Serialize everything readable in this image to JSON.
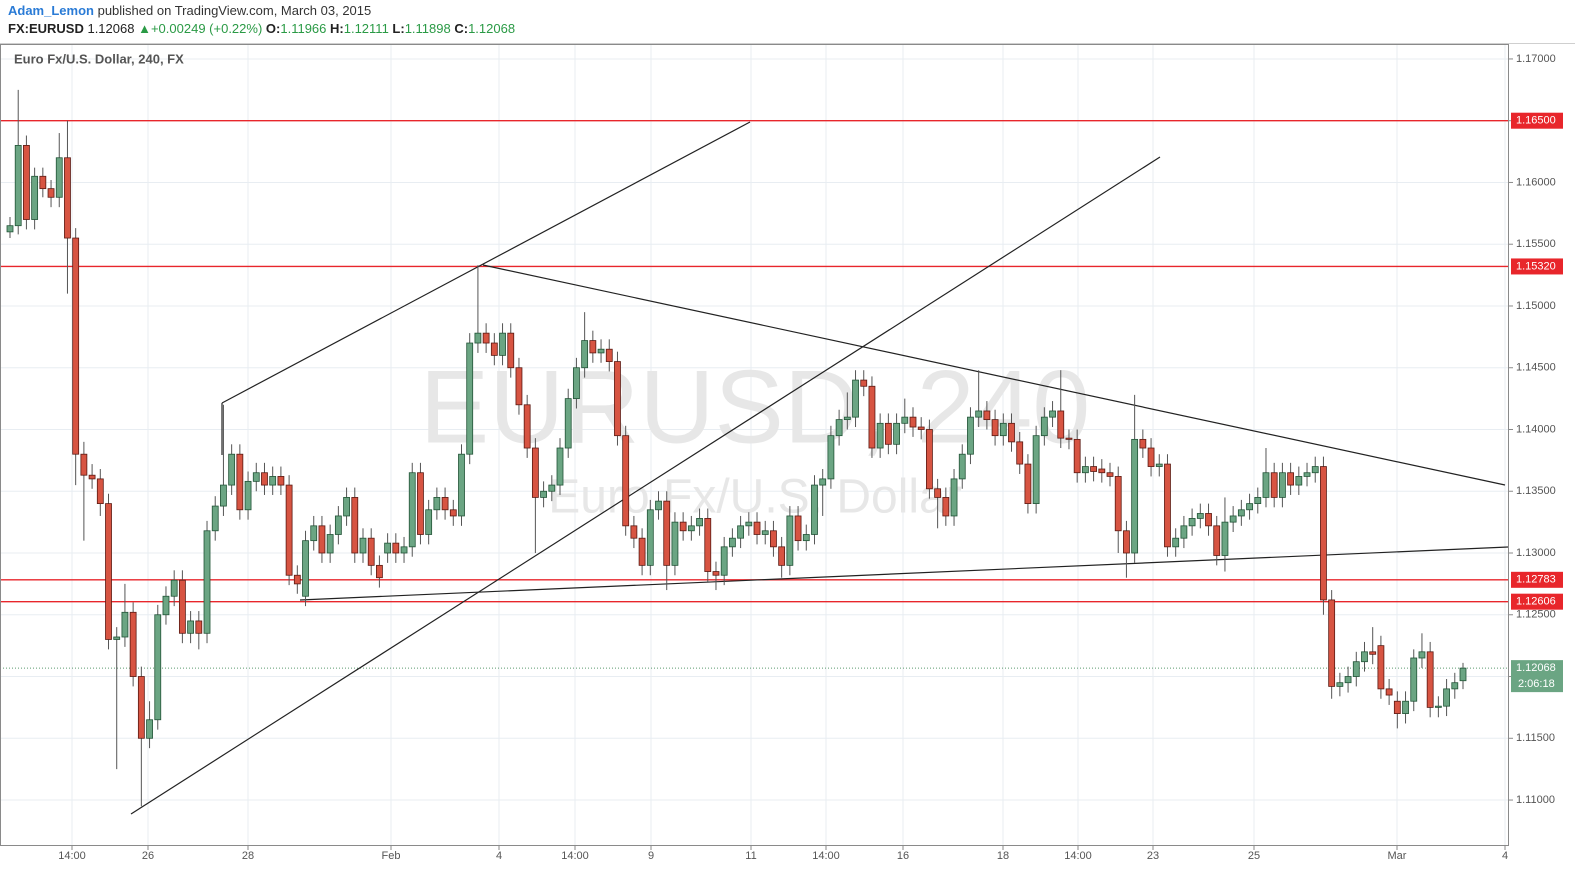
{
  "header": {
    "author": "Adam_Lemon",
    "published": "published on TradingView.com, March 03, 2015",
    "symbol": "FX:EURUSD",
    "last": "1.12068",
    "arrow": "▲",
    "change": "+0.00249 (+0.22%)",
    "o_label": "O:",
    "open": "1.11966",
    "h_label": "H:",
    "high": "1.12111",
    "l_label": "L:",
    "low": "1.11898",
    "c_label": "C:",
    "close": "1.12068"
  },
  "chart_data": {
    "type": "candlestick",
    "title": "Euro Fx/U.S. Dollar, 240, FX",
    "watermark": "EURUSD, 240",
    "watermark_sub": "Euro Fx/U.S. Dollar",
    "up_color": "#6ba583",
    "down_color": "#d75442",
    "grid": true,
    "ylim": [
      1.10636,
      1.17121
    ],
    "yticks": [
      {
        "value": 1.11,
        "label": "1.11000"
      },
      {
        "value": 1.115,
        "label": "1.11500"
      },
      {
        "value": 1.12,
        "label": "1.12000"
      },
      {
        "value": 1.125,
        "label": "1.12500"
      },
      {
        "value": 1.13,
        "label": "1.13000"
      },
      {
        "value": 1.135,
        "label": "1.13500"
      },
      {
        "value": 1.14,
        "label": "1.14000"
      },
      {
        "value": 1.145,
        "label": "1.14500"
      },
      {
        "value": 1.15,
        "label": "1.15000"
      },
      {
        "value": 1.155,
        "label": "1.15500"
      },
      {
        "value": 1.16,
        "label": "1.16000"
      },
      {
        "value": 1.165,
        "label": "1.16500"
      },
      {
        "value": 1.17,
        "label": "1.17000"
      }
    ],
    "x_labels": [
      "14:00",
      "26",
      "28",
      "Feb",
      "4",
      "14:00",
      "9",
      "11",
      "14:00",
      "16",
      "18",
      "14:00",
      "23",
      "25",
      "Mar",
      "4"
    ],
    "levels": [
      {
        "value": 1.165,
        "label": "1.16500"
      },
      {
        "value": 1.1532,
        "label": "1.15320"
      },
      {
        "value": 1.12783,
        "label": "1.12783"
      },
      {
        "value": 1.12606,
        "label": "1.12606"
      }
    ],
    "level_color": "#e8262b",
    "last_price": {
      "value": 1.12068,
      "label": "1.12068"
    },
    "countdown": "2:06:18",
    "ohlc": [
      [
        1.156,
        1.1572,
        1.1555,
        1.1565
      ],
      [
        1.1565,
        1.1675,
        1.1558,
        1.163
      ],
      [
        1.163,
        1.1638,
        1.1562,
        1.157
      ],
      [
        1.157,
        1.1612,
        1.1562,
        1.1605
      ],
      [
        1.1605,
        1.1612,
        1.1588,
        1.1595
      ],
      [
        1.1595,
        1.1602,
        1.158,
        1.1588
      ],
      [
        1.1588,
        1.164,
        1.158,
        1.162
      ],
      [
        1.162,
        1.165,
        1.151,
        1.1555
      ],
      [
        1.1555,
        1.1563,
        1.1355,
        1.138
      ],
      [
        1.138,
        1.139,
        1.131,
        1.1363
      ],
      [
        1.1363,
        1.1372,
        1.1352,
        1.136
      ],
      [
        1.136,
        1.1368,
        1.133,
        1.134
      ],
      [
        1.134,
        1.1348,
        1.1222,
        1.123
      ],
      [
        1.123,
        1.124,
        1.1125,
        1.1232
      ],
      [
        1.1232,
        1.1275,
        1.1224,
        1.1252
      ],
      [
        1.1252,
        1.126,
        1.1192,
        1.12
      ],
      [
        1.12,
        1.1208,
        1.1095,
        1.115
      ],
      [
        1.115,
        1.118,
        1.1142,
        1.1165
      ],
      [
        1.1165,
        1.1258,
        1.1157,
        1.125
      ],
      [
        1.125,
        1.1273,
        1.1242,
        1.1265
      ],
      [
        1.1265,
        1.1286,
        1.1257,
        1.1278
      ],
      [
        1.1278,
        1.1286,
        1.1227,
        1.1235
      ],
      [
        1.1235,
        1.1253,
        1.1227,
        1.1245
      ],
      [
        1.1245,
        1.1253,
        1.1222,
        1.1235
      ],
      [
        1.1235,
        1.1326,
        1.1227,
        1.1318
      ],
      [
        1.1318,
        1.1346,
        1.131,
        1.1338
      ],
      [
        1.1338,
        1.142,
        1.133,
        1.1355
      ],
      [
        1.1355,
        1.1388,
        1.1347,
        1.138
      ],
      [
        1.138,
        1.1388,
        1.1327,
        1.1335
      ],
      [
        1.1335,
        1.1366,
        1.1327,
        1.1358
      ],
      [
        1.1358,
        1.1373,
        1.135,
        1.1365
      ],
      [
        1.1365,
        1.1373,
        1.1347,
        1.1355
      ],
      [
        1.1355,
        1.137,
        1.1347,
        1.1362
      ],
      [
        1.1362,
        1.137,
        1.1347,
        1.1355
      ],
      [
        1.1355,
        1.1363,
        1.1274,
        1.1282
      ],
      [
        1.1282,
        1.129,
        1.1267,
        1.1275
      ],
      [
        1.1265,
        1.1318,
        1.1257,
        1.131
      ],
      [
        1.131,
        1.133,
        1.1302,
        1.1322
      ],
      [
        1.1322,
        1.133,
        1.1292,
        1.13
      ],
      [
        1.13,
        1.1323,
        1.1292,
        1.1315
      ],
      [
        1.1315,
        1.1338,
        1.1307,
        1.133
      ],
      [
        1.133,
        1.1353,
        1.1322,
        1.1345
      ],
      [
        1.1345,
        1.1353,
        1.1292,
        1.13
      ],
      [
        1.13,
        1.132,
        1.1292,
        1.1312
      ],
      [
        1.1312,
        1.132,
        1.1282,
        1.129
      ],
      [
        1.129,
        1.1298,
        1.1272,
        1.128
      ],
      [
        1.13,
        1.1316,
        1.1292,
        1.1308
      ],
      [
        1.1308,
        1.1316,
        1.1292,
        1.13
      ],
      [
        1.13,
        1.1313,
        1.1292,
        1.1305
      ],
      [
        1.1305,
        1.1373,
        1.1297,
        1.1365
      ],
      [
        1.1365,
        1.1373,
        1.1307,
        1.1315
      ],
      [
        1.1315,
        1.1343,
        1.1307,
        1.1335
      ],
      [
        1.1335,
        1.1353,
        1.1327,
        1.1345
      ],
      [
        1.1345,
        1.1353,
        1.1327,
        1.1335
      ],
      [
        1.1335,
        1.1343,
        1.1322,
        1.133
      ],
      [
        1.133,
        1.1388,
        1.1322,
        1.138
      ],
      [
        1.138,
        1.1478,
        1.1372,
        1.147
      ],
      [
        1.147,
        1.1533,
        1.1462,
        1.1478
      ],
      [
        1.1478,
        1.1486,
        1.1462,
        1.147
      ],
      [
        1.147,
        1.1478,
        1.1452,
        1.146
      ],
      [
        1.146,
        1.1486,
        1.1452,
        1.1478
      ],
      [
        1.1478,
        1.1486,
        1.1442,
        1.145
      ],
      [
        1.145,
        1.1458,
        1.1412,
        1.142
      ],
      [
        1.142,
        1.1428,
        1.1377,
        1.1385
      ],
      [
        1.1385,
        1.1393,
        1.13,
        1.1345
      ],
      [
        1.1345,
        1.1358,
        1.1337,
        1.135
      ],
      [
        1.135,
        1.1363,
        1.1342,
        1.1355
      ],
      [
        1.1355,
        1.1393,
        1.1347,
        1.1385
      ],
      [
        1.1385,
        1.1433,
        1.1377,
        1.1425
      ],
      [
        1.1425,
        1.1458,
        1.1417,
        1.145
      ],
      [
        1.145,
        1.1495,
        1.1442,
        1.1472
      ],
      [
        1.1472,
        1.148,
        1.1454,
        1.1462
      ],
      [
        1.1462,
        1.1473,
        1.1454,
        1.1465
      ],
      [
        1.1465,
        1.1473,
        1.1447,
        1.1455
      ],
      [
        1.1455,
        1.1463,
        1.1387,
        1.1395
      ],
      [
        1.1395,
        1.1403,
        1.1314,
        1.1322
      ],
      [
        1.1322,
        1.133,
        1.1304,
        1.1312
      ],
      [
        1.1312,
        1.132,
        1.1282,
        1.129
      ],
      [
        1.129,
        1.1343,
        1.1282,
        1.1335
      ],
      [
        1.1335,
        1.135,
        1.1327,
        1.1342
      ],
      [
        1.1342,
        1.135,
        1.127,
        1.129
      ],
      [
        1.129,
        1.1333,
        1.1282,
        1.1325
      ],
      [
        1.1325,
        1.1333,
        1.131,
        1.1318
      ],
      [
        1.1318,
        1.133,
        1.131,
        1.1322
      ],
      [
        1.1322,
        1.1336,
        1.1314,
        1.1328
      ],
      [
        1.1328,
        1.1336,
        1.1277,
        1.1285
      ],
      [
        1.1285,
        1.1293,
        1.127,
        1.1282
      ],
      [
        1.1282,
        1.1313,
        1.1274,
        1.1305
      ],
      [
        1.1305,
        1.132,
        1.1297,
        1.1312
      ],
      [
        1.1312,
        1.133,
        1.1304,
        1.1322
      ],
      [
        1.1322,
        1.1333,
        1.1314,
        1.1325
      ],
      [
        1.1325,
        1.1333,
        1.1307,
        1.1315
      ],
      [
        1.1315,
        1.1326,
        1.1307,
        1.1318
      ],
      [
        1.1318,
        1.1326,
        1.1297,
        1.1305
      ],
      [
        1.1305,
        1.1313,
        1.128,
        1.129
      ],
      [
        1.129,
        1.1338,
        1.1282,
        1.133
      ],
      [
        1.133,
        1.1338,
        1.1302,
        1.131
      ],
      [
        1.131,
        1.1323,
        1.1302,
        1.1315
      ],
      [
        1.1315,
        1.1363,
        1.1307,
        1.1355
      ],
      [
        1.1355,
        1.1368,
        1.133,
        1.136
      ],
      [
        1.136,
        1.1403,
        1.1352,
        1.1395
      ],
      [
        1.1395,
        1.1416,
        1.1387,
        1.1408
      ],
      [
        1.1408,
        1.143,
        1.14,
        1.141
      ],
      [
        1.141,
        1.1448,
        1.1402,
        1.144
      ],
      [
        1.144,
        1.1448,
        1.1427,
        1.1435
      ],
      [
        1.1435,
        1.1443,
        1.1377,
        1.1385
      ],
      [
        1.1385,
        1.1413,
        1.1377,
        1.1405
      ],
      [
        1.1405,
        1.1413,
        1.138,
        1.1388
      ],
      [
        1.1388,
        1.1413,
        1.138,
        1.1405
      ],
      [
        1.1405,
        1.1425,
        1.1397,
        1.141
      ],
      [
        1.141,
        1.1418,
        1.1394,
        1.1402
      ],
      [
        1.1402,
        1.141,
        1.1392,
        1.14
      ],
      [
        1.14,
        1.1408,
        1.1344,
        1.1352
      ],
      [
        1.1352,
        1.136,
        1.132,
        1.1345
      ],
      [
        1.1345,
        1.1353,
        1.1322,
        1.133
      ],
      [
        1.133,
        1.1368,
        1.1322,
        1.136
      ],
      [
        1.136,
        1.1388,
        1.1352,
        1.138
      ],
      [
        1.138,
        1.1418,
        1.1372,
        1.141
      ],
      [
        1.141,
        1.1448,
        1.1402,
        1.1415
      ],
      [
        1.1415,
        1.1423,
        1.14,
        1.1408
      ],
      [
        1.1408,
        1.1416,
        1.1387,
        1.1395
      ],
      [
        1.1395,
        1.1413,
        1.1387,
        1.1405
      ],
      [
        1.1405,
        1.1413,
        1.1382,
        1.139
      ],
      [
        1.139,
        1.1398,
        1.1364,
        1.1372
      ],
      [
        1.1372,
        1.138,
        1.1332,
        1.134
      ],
      [
        1.134,
        1.1403,
        1.1332,
        1.1395
      ],
      [
        1.1395,
        1.1418,
        1.1387,
        1.141
      ],
      [
        1.141,
        1.1423,
        1.1402,
        1.1415
      ],
      [
        1.1415,
        1.1448,
        1.1385,
        1.1393
      ],
      [
        1.1393,
        1.14,
        1.1384,
        1.1392
      ],
      [
        1.1392,
        1.14,
        1.1357,
        1.1365
      ],
      [
        1.1365,
        1.1378,
        1.1357,
        1.137
      ],
      [
        1.137,
        1.1378,
        1.1358,
        1.1366
      ],
      [
        1.1368,
        1.1376,
        1.1357,
        1.1365
      ],
      [
        1.1365,
        1.1373,
        1.1354,
        1.1362
      ],
      [
        1.1362,
        1.137,
        1.13,
        1.1318
      ],
      [
        1.1318,
        1.1326,
        1.128,
        1.13
      ],
      [
        1.13,
        1.1428,
        1.1292,
        1.1392
      ],
      [
        1.1392,
        1.14,
        1.1377,
        1.1385
      ],
      [
        1.1385,
        1.1393,
        1.1362,
        1.137
      ],
      [
        1.137,
        1.138,
        1.1362,
        1.1372
      ],
      [
        1.1372,
        1.138,
        1.1297,
        1.1305
      ],
      [
        1.1305,
        1.132,
        1.1297,
        1.1312
      ],
      [
        1.1312,
        1.133,
        1.1304,
        1.1322
      ],
      [
        1.1322,
        1.1336,
        1.1314,
        1.1328
      ],
      [
        1.1328,
        1.134,
        1.132,
        1.1332
      ],
      [
        1.1332,
        1.134,
        1.1314,
        1.1322
      ],
      [
        1.1322,
        1.133,
        1.129,
        1.1298
      ],
      [
        1.1298,
        1.1345,
        1.1285,
        1.1325
      ],
      [
        1.1325,
        1.1338,
        1.1317,
        1.133
      ],
      [
        1.133,
        1.1343,
        1.1322,
        1.1335
      ],
      [
        1.1335,
        1.1348,
        1.1327,
        1.134
      ],
      [
        1.134,
        1.1353,
        1.1332,
        1.1345
      ],
      [
        1.1345,
        1.1385,
        1.1337,
        1.1365
      ],
      [
        1.1365,
        1.1373,
        1.1337,
        1.1345
      ],
      [
        1.1345,
        1.1373,
        1.1337,
        1.1365
      ],
      [
        1.1365,
        1.1373,
        1.1347,
        1.1355
      ],
      [
        1.1355,
        1.137,
        1.1347,
        1.1362
      ],
      [
        1.1362,
        1.1373,
        1.1354,
        1.1365
      ],
      [
        1.1365,
        1.1378,
        1.1357,
        1.137
      ],
      [
        1.137,
        1.1378,
        1.125,
        1.1262
      ],
      [
        1.1262,
        1.127,
        1.1182,
        1.1192
      ],
      [
        1.1192,
        1.1203,
        1.1184,
        1.1195
      ],
      [
        1.1195,
        1.1208,
        1.1187,
        1.12
      ],
      [
        1.12,
        1.122,
        1.1192,
        1.1212
      ],
      [
        1.1212,
        1.1228,
        1.1204,
        1.122
      ],
      [
        1.122,
        1.124,
        1.121,
        1.1218
      ],
      [
        1.1225,
        1.1233,
        1.1182,
        1.119
      ],
      [
        1.119,
        1.1198,
        1.1177,
        1.1185
      ],
      [
        1.118,
        1.1188,
        1.1158,
        1.117
      ],
      [
        1.117,
        1.1188,
        1.1162,
        1.118
      ],
      [
        1.118,
        1.1222,
        1.1172,
        1.1215
      ],
      [
        1.1215,
        1.1235,
        1.1207,
        1.122
      ],
      [
        1.122,
        1.1228,
        1.1167,
        1.1175
      ],
      [
        1.1175,
        1.1184,
        1.1167,
        1.1176
      ],
      [
        1.1176,
        1.1198,
        1.1168,
        1.119
      ],
      [
        1.119,
        1.1203,
        1.1182,
        1.1195
      ],
      [
        1.11966,
        1.12111,
        1.11898,
        1.12068
      ]
    ]
  }
}
